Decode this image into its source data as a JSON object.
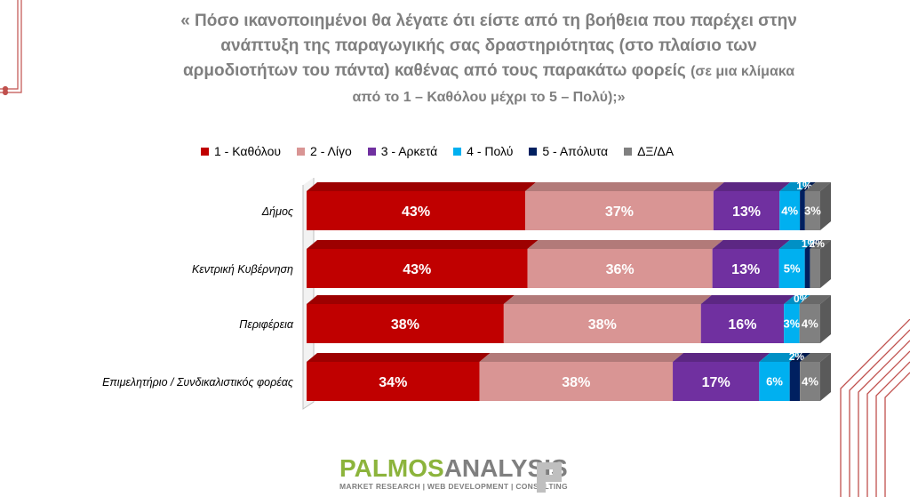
{
  "title": {
    "main": "« Πόσο ικανοποιημένοι θα λέγατε ότι είστε από τη βοήθεια που παρέχει στην ανάπτυξη της παραγωγικής σας δραστηριότητας (στο πλαίσιο των αρμοδιοτήτων του πάντα) καθένας από τους παρακάτω φορείς",
    "sub": "(σε μια κλίμακα από το 1 – Καθόλου μέχρι το 5 – Πολύ);»"
  },
  "logo": {
    "palmos": "PALMOS",
    "analysis": "ANALYSIS",
    "tagline": "MARKET RESEARCH | WEB DEVELOPMENT | CONSULTING"
  },
  "chart_data": {
    "type": "bar",
    "orientation": "horizontal",
    "stacked": "100%",
    "categories": [
      "Δήμος",
      "Κεντρική Κυβέρνηση",
      "Περιφέρεια",
      "Επιμελητήριο / Συνδικαλιστικός φορέας"
    ],
    "legend_position": "top",
    "series": [
      {
        "name": "1 - Καθόλου",
        "color": "#c00000",
        "values": [
          43,
          43,
          38,
          34
        ]
      },
      {
        "name": "2 - Λίγο",
        "color": "#d99594",
        "values": [
          37,
          36,
          38,
          38
        ]
      },
      {
        "name": "3 - Αρκετά",
        "color": "#7030a0",
        "values": [
          13,
          13,
          16,
          17
        ]
      },
      {
        "name": "4 - Πολύ",
        "color": "#00b0f0",
        "values": [
          4,
          5,
          3,
          6
        ]
      },
      {
        "name": "5 - Απόλυτα",
        "color": "#002060",
        "values": [
          1,
          1,
          0,
          2
        ]
      },
      {
        "name": "ΔΞ/ΔΑ",
        "color": "#808080",
        "values": [
          3,
          2,
          4,
          4
        ]
      }
    ],
    "value_suffix": "%",
    "grid": false
  }
}
